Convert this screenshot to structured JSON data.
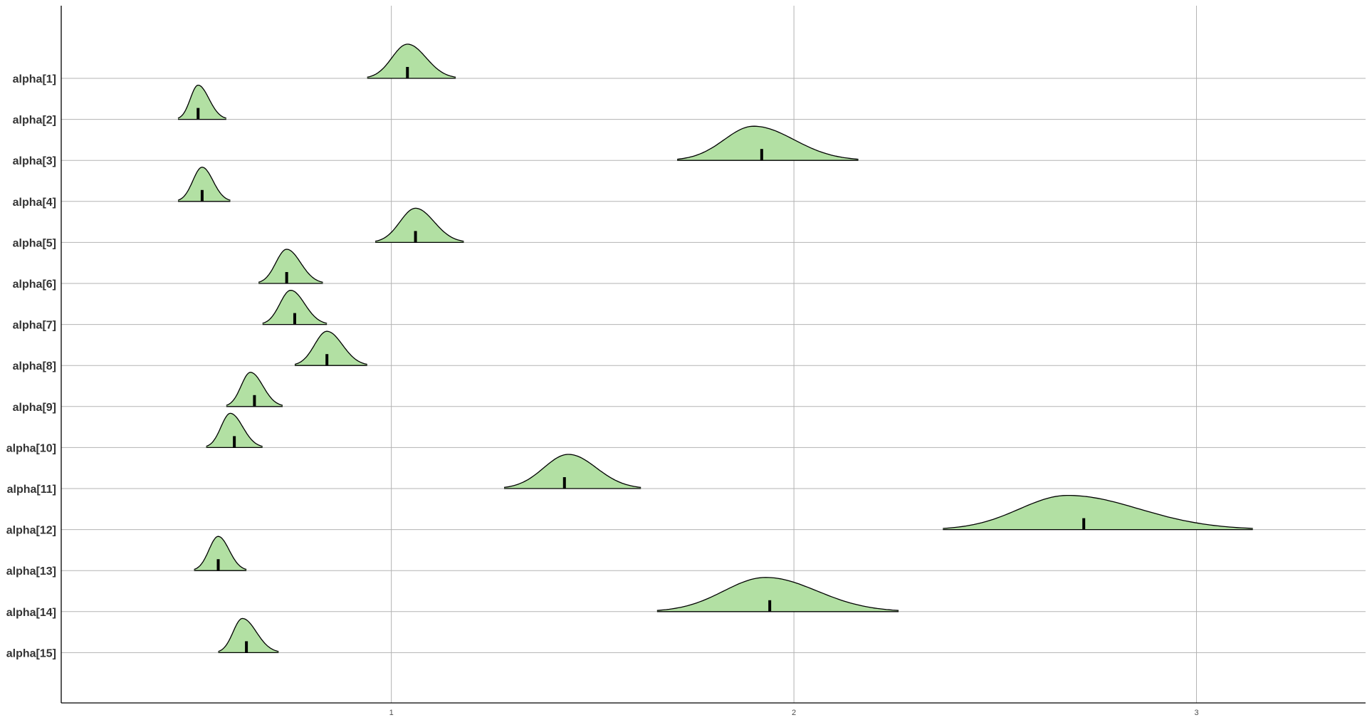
{
  "chart_data": {
    "type": "area",
    "subtype": "ridgeline-density",
    "title": "",
    "xlabel": "",
    "ylabel": "",
    "xlim": [
      0.18,
      3.42
    ],
    "x_ticks": [
      1,
      2,
      3
    ],
    "x_tick_labels": [
      "1",
      "2",
      "3"
    ],
    "grid": "major x and y",
    "legend": "none",
    "fill_color": "#b2e0a3",
    "line_color": "#000000",
    "grid_color": "#b3b3b3",
    "series": [
      {
        "name": "alpha[1]",
        "lo": 0.94,
        "hi": 1.16,
        "peak": 1.04,
        "median": 1.04
      },
      {
        "name": "alpha[2]",
        "lo": 0.47,
        "hi": 0.59,
        "peak": 0.52,
        "median": 0.52
      },
      {
        "name": "alpha[3]",
        "lo": 1.71,
        "hi": 2.16,
        "peak": 1.9,
        "median": 1.92
      },
      {
        "name": "alpha[4]",
        "lo": 0.47,
        "hi": 0.6,
        "peak": 0.53,
        "median": 0.53
      },
      {
        "name": "alpha[5]",
        "lo": 0.96,
        "hi": 1.18,
        "peak": 1.06,
        "median": 1.06
      },
      {
        "name": "alpha[6]",
        "lo": 0.67,
        "hi": 0.83,
        "peak": 0.74,
        "median": 0.74
      },
      {
        "name": "alpha[7]",
        "lo": 0.68,
        "hi": 0.84,
        "peak": 0.75,
        "median": 0.76
      },
      {
        "name": "alpha[8]",
        "lo": 0.76,
        "hi": 0.94,
        "peak": 0.84,
        "median": 0.84
      },
      {
        "name": "alpha[9]",
        "lo": 0.59,
        "hi": 0.73,
        "peak": 0.65,
        "median": 0.66
      },
      {
        "name": "alpha[10]",
        "lo": 0.54,
        "hi": 0.68,
        "peak": 0.6,
        "median": 0.61
      },
      {
        "name": "alpha[11]",
        "lo": 1.28,
        "hi": 1.62,
        "peak": 1.44,
        "median": 1.43
      },
      {
        "name": "alpha[12]",
        "lo": 2.37,
        "hi": 3.14,
        "peak": 2.68,
        "median": 2.72
      },
      {
        "name": "alpha[13]",
        "lo": 0.51,
        "hi": 0.64,
        "peak": 0.57,
        "median": 0.57
      },
      {
        "name": "alpha[14]",
        "lo": 1.66,
        "hi": 2.26,
        "peak": 1.93,
        "median": 1.94
      },
      {
        "name": "alpha[15]",
        "lo": 0.57,
        "hi": 0.72,
        "peak": 0.63,
        "median": 0.64
      }
    ]
  }
}
